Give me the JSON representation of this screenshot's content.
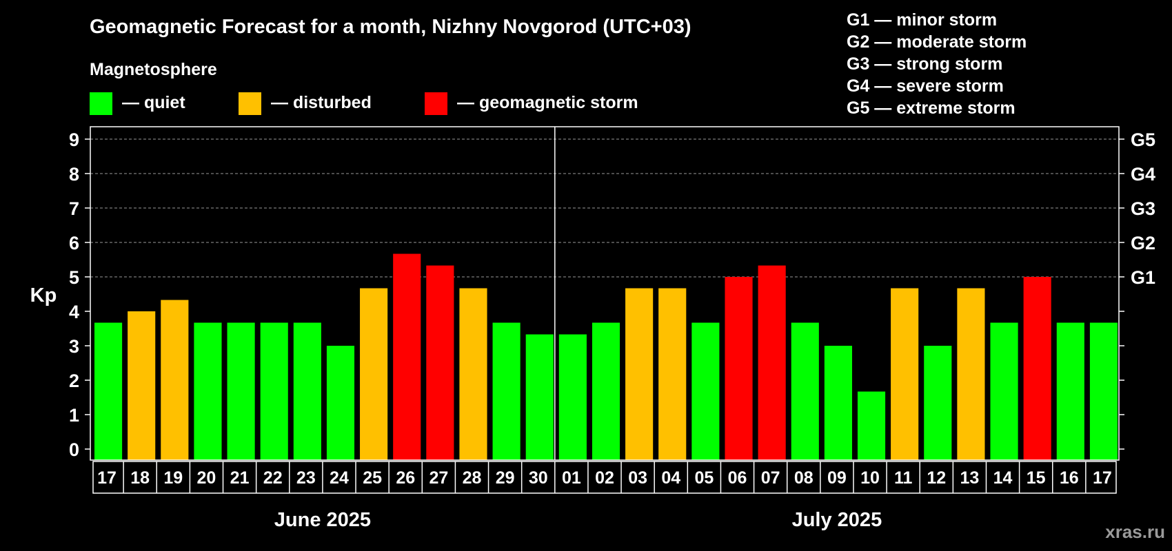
{
  "chart_data": {
    "type": "bar",
    "title": "Geomagnetic Forecast for a month, Nizhny Novgorod (UTC+03)",
    "ylabel": "Kp",
    "ylim": [
      0,
      9
    ],
    "yticks": [
      "0",
      "1",
      "2",
      "3",
      "4",
      "5",
      "6",
      "7",
      "8",
      "9"
    ],
    "storm_levels": [
      {
        "label": "G1",
        "kp": 5
      },
      {
        "label": "G2",
        "kp": 6
      },
      {
        "label": "G3",
        "kp": 7
      },
      {
        "label": "G4",
        "kp": 8
      },
      {
        "label": "G5",
        "kp": 9
      }
    ],
    "legend_title": "Magnetosphere",
    "legend": [
      {
        "key": "quiet",
        "label": "— quiet",
        "color": "#00FF00"
      },
      {
        "key": "disturbed",
        "label": "— disturbed",
        "color": "#FFC000"
      },
      {
        "key": "storm",
        "label": "— geomagnetic storm",
        "color": "#FF0000"
      }
    ],
    "storm_legend": [
      "G1 — minor storm",
      "G2 — moderate storm",
      "G3 — strong storm",
      "G4 — severe storm",
      "G5 — extreme storm"
    ],
    "months": [
      {
        "label": "June 2025",
        "start": 0,
        "count": 14
      },
      {
        "label": "July 2025",
        "start": 14,
        "count": 17
      }
    ],
    "categories": [
      "17",
      "18",
      "19",
      "20",
      "21",
      "22",
      "23",
      "24",
      "25",
      "26",
      "27",
      "28",
      "29",
      "30",
      "01",
      "02",
      "03",
      "04",
      "05",
      "06",
      "07",
      "08",
      "09",
      "10",
      "11",
      "12",
      "13",
      "14",
      "15",
      "16",
      "17"
    ],
    "values": [
      3.67,
      4.0,
      4.33,
      3.67,
      3.67,
      3.67,
      3.67,
      3.0,
      4.67,
      5.67,
      5.33,
      4.67,
      3.67,
      3.33,
      3.33,
      3.67,
      4.67,
      4.67,
      3.67,
      5.0,
      5.33,
      3.67,
      3.0,
      1.67,
      4.67,
      3.0,
      4.67,
      3.67,
      5.0,
      3.67,
      3.67
    ],
    "status": [
      "quiet",
      "disturbed",
      "disturbed",
      "quiet",
      "quiet",
      "quiet",
      "quiet",
      "quiet",
      "disturbed",
      "storm",
      "storm",
      "disturbed",
      "quiet",
      "quiet",
      "quiet",
      "quiet",
      "disturbed",
      "disturbed",
      "quiet",
      "storm",
      "storm",
      "quiet",
      "quiet",
      "quiet",
      "disturbed",
      "quiet",
      "disturbed",
      "quiet",
      "storm",
      "quiet",
      "quiet"
    ],
    "grid": true,
    "watermark": "xras.ru"
  }
}
